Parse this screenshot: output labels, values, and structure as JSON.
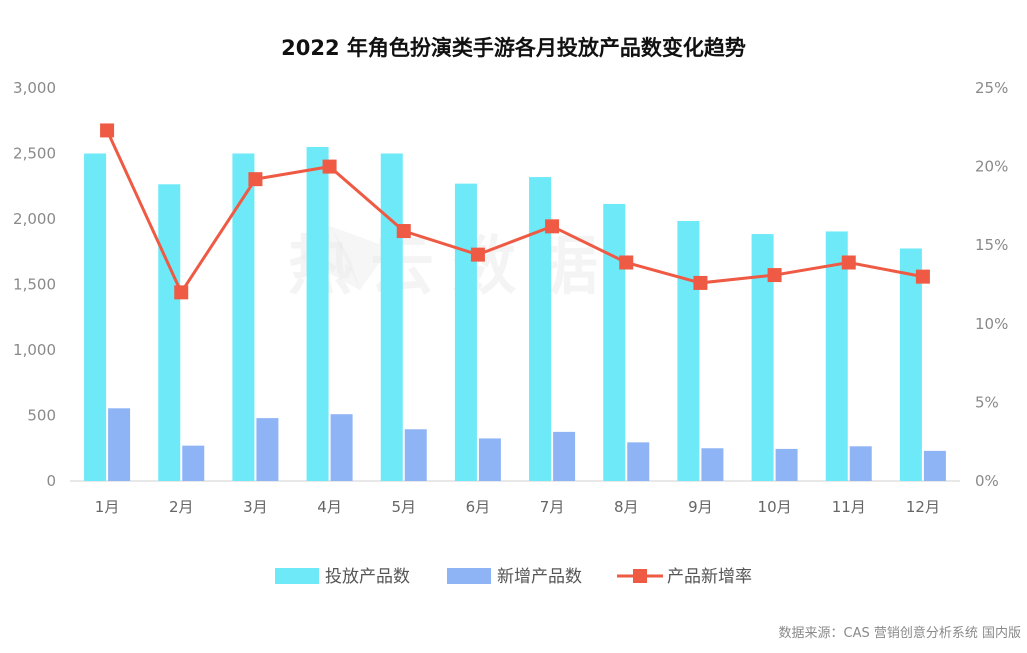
{
  "chart_data": {
    "type": "bar",
    "title": "2022 年角色扮演类手游各月投放产品数变化趋势",
    "categories": [
      "1月",
      "2月",
      "3月",
      "4月",
      "5月",
      "6月",
      "7月",
      "8月",
      "9月",
      "10月",
      "11月",
      "12月"
    ],
    "series": [
      {
        "name": "投放产品数",
        "type": "bar",
        "axis": "left",
        "color": "#6de9f8",
        "values": [
          2500,
          2265,
          2500,
          2550,
          2500,
          2270,
          2320,
          2115,
          1985,
          1885,
          1905,
          1775
        ]
      },
      {
        "name": "新增产品数",
        "type": "bar",
        "axis": "left",
        "color": "#8fb4f6",
        "values": [
          555,
          270,
          480,
          510,
          395,
          325,
          375,
          295,
          250,
          245,
          265,
          230
        ]
      },
      {
        "name": "产品新增率",
        "type": "line",
        "axis": "right",
        "color": "#ee5a43",
        "values": [
          22.3,
          12.0,
          19.2,
          20.0,
          15.9,
          14.4,
          16.2,
          13.9,
          12.6,
          13.1,
          13.9,
          13.0
        ]
      }
    ],
    "y_left": {
      "lim": [
        0,
        3000
      ],
      "ticks": [
        "0",
        "500",
        "1,000",
        "1,500",
        "2,000",
        "2,500",
        "3,000"
      ]
    },
    "y_right": {
      "lim": [
        0,
        25
      ],
      "ticks": [
        "0%",
        "5%",
        "10%",
        "15%",
        "20%",
        "25%"
      ]
    },
    "legend_position": "bottom",
    "grid": false
  },
  "source_note": "数据来源：CAS 营销创意分析系统 国内版",
  "watermark_text": "热云数据"
}
